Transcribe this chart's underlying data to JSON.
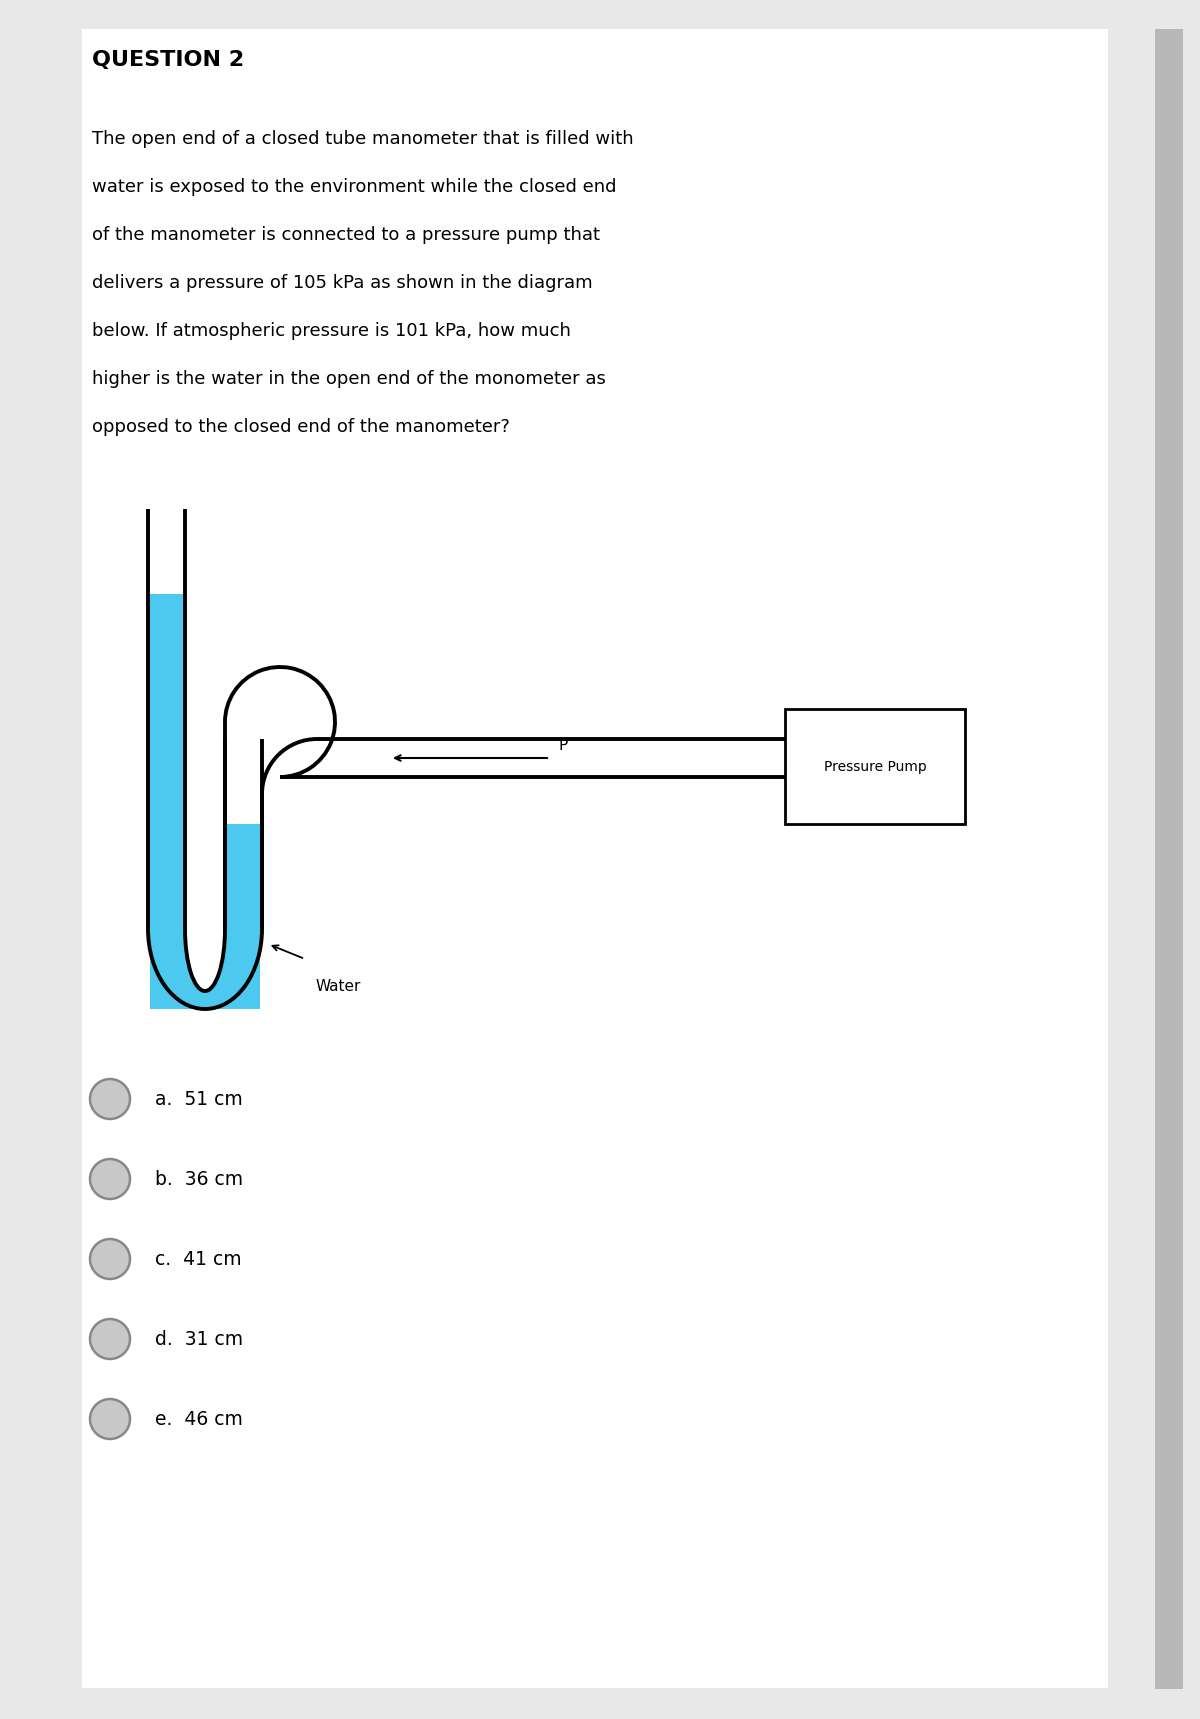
{
  "title": "QUESTION 2",
  "question_lines": [
    "The open end of a closed tube manometer that is filled with",
    "water is exposed to the environment while the closed end",
    "of the manometer is connected to a pressure pump that",
    "delivers a pressure of 105 kPa as shown in the diagram",
    "below. If atmospheric pressure is 101 kPa, how much",
    "higher is the water in the open end of the monometer as",
    "opposed to the closed end of the manometer?"
  ],
  "choices": [
    "a.  51 cm",
    "b.  36 cm",
    "c.  41 cm",
    "d.  31 cm",
    "e.  46 cm"
  ],
  "water_color": "#4DC8EE",
  "tube_color": "#000000",
  "pump_label": "Pressure Pump",
  "arrow_label": "P",
  "water_label": "Water",
  "bg_color": "#e8e8e8",
  "page_color": "#ffffff",
  "radio_color": "#c8c8c8",
  "radio_edge": "#888888"
}
